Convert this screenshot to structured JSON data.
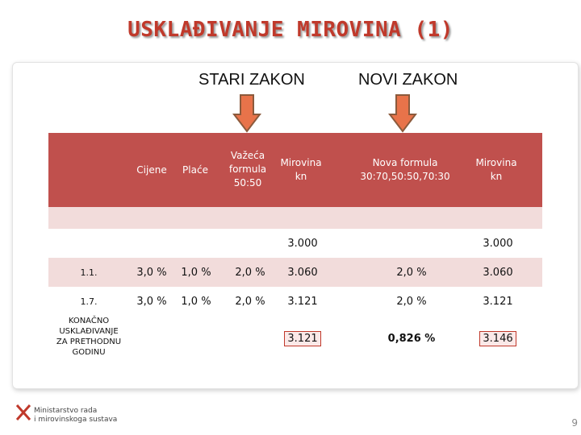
{
  "title": "USKLAĐIVANJE MIROVINA (1)",
  "columns": {
    "old_law": "STARI ZAKON",
    "new_law": "NOVI ZAKON"
  },
  "header": {
    "cijene": "Cijene",
    "place": "Plaće",
    "vazeca": [
      "Važeća",
      "formula",
      "50:50"
    ],
    "mirovina_old": [
      "Mirovina",
      "kn"
    ],
    "nova_formula": [
      "Nova formula",
      "30:70,50:50,70:30"
    ],
    "mirovina_new": [
      "Mirovina",
      "kn"
    ]
  },
  "base_row": {
    "old": "3.000",
    "new": "3.000"
  },
  "rows": [
    {
      "label": "1.1.",
      "cijene": "3,0 %",
      "place": "1,0 %",
      "formula": "2,0 %",
      "mirovina": "3.060",
      "nova": "2,0 %",
      "mirovina_new": "3.060"
    },
    {
      "label": "1.7.",
      "cijene": "3,0 %",
      "place": "1,0 %",
      "formula": "2,0 %",
      "mirovina": "3.121",
      "nova": "2,0 %",
      "mirovina_new": "3.121"
    }
  ],
  "final_row": {
    "label": [
      "KONAČNO",
      "USKLAĐIVANJE",
      "ZA PRETHODNU",
      "GODINU"
    ],
    "mirovina": "3.121",
    "nova": "0,826 %",
    "mirovina_new": "3.146"
  },
  "logo": {
    "line1": "Ministarstvo rada",
    "line2": "i mirovinskoga sustava"
  },
  "page_number": "9",
  "colors": {
    "accent": "#c0504d",
    "band": "#f2dcdb",
    "arrow": "#e8734a"
  }
}
